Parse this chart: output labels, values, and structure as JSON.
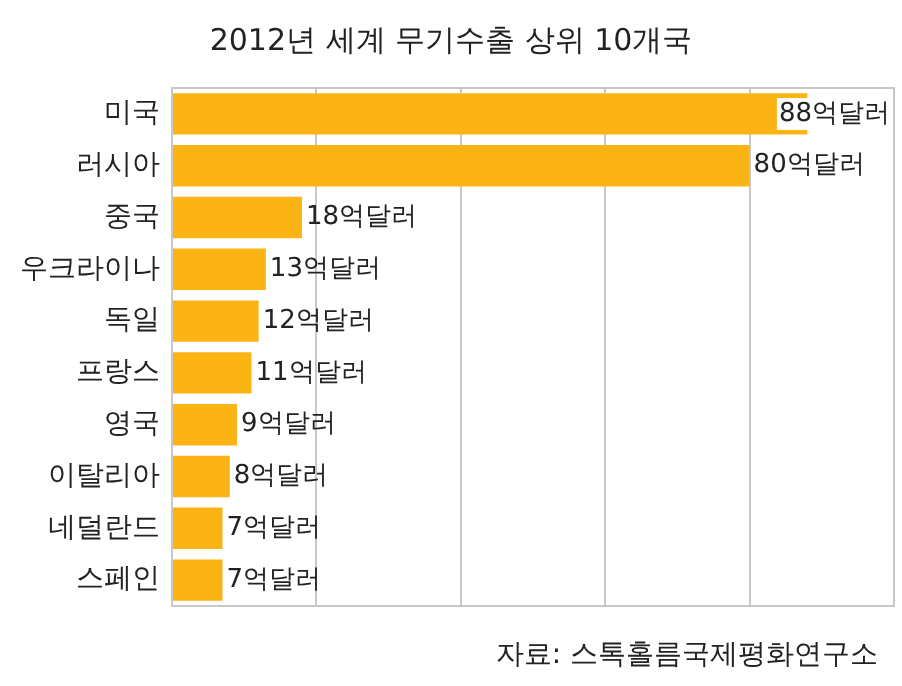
{
  "chart_data": {
    "type": "bar",
    "orientation": "horizontal",
    "title": "2012년 세계 무기수출 상위 10개국",
    "categories": [
      "미국",
      "러시아",
      "중국",
      "우크라이나",
      "독일",
      "프랑스",
      "영국",
      "이탈리아",
      "네덜란드",
      "스페인"
    ],
    "values": [
      88,
      80,
      18,
      13,
      12,
      11,
      9,
      8,
      7,
      7
    ],
    "value_labels": [
      "88억달러",
      "80억달러",
      "18억달러",
      "13억달러",
      "12억달러",
      "11억달러",
      "9억달러",
      "8억달러",
      "7억달러",
      "7억달러"
    ],
    "color": "#fcb415",
    "xlim": [
      0,
      100
    ],
    "xticks": [
      {
        "value": 0,
        "label": null
      },
      {
        "value": 20,
        "label": null
      },
      {
        "value": 40,
        "label": null
      },
      {
        "value": 60,
        "label": null
      },
      {
        "value": 80,
        "label": null
      },
      {
        "value": 100,
        "label": null
      }
    ],
    "tick_labels": "y",
    "grid": "x",
    "legend": false,
    "annotations": [
      "자료: 스톡홀름국제평화연구소"
    ]
  }
}
